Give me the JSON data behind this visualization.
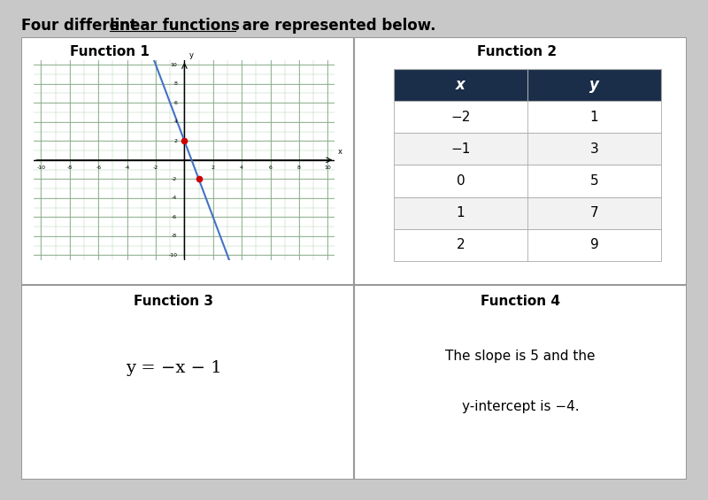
{
  "title_text_part1": "Four different ",
  "title_text_underline": "linear functions",
  "title_text_part2": " are represented below.",
  "outer_bg": "#c8c8c8",
  "panel_bg": "#ffffff",
  "border_color": "#999999",
  "func1_title": "Function 1",
  "func1_line_color": "#4472c4",
  "func1_point1": [
    0,
    2
  ],
  "func1_point2": [
    1,
    -2
  ],
  "func1_slope": -4,
  "func1_intercept": 2,
  "func1_point_color": "#cc0000",
  "func1_grid_bg": "#ddeedd",
  "func1_grid_minor": "#aaccaa",
  "func1_grid_major": "#88aa88",
  "func2_title": "Function 2",
  "func2_header_bg": "#1a2e4a",
  "func2_header_color": "#ffffff",
  "func2_x": [
    -2,
    -1,
    0,
    1,
    2
  ],
  "func2_y": [
    1,
    3,
    5,
    7,
    9
  ],
  "func2_row_bg1": "#ffffff",
  "func2_row_bg2": "#f2f2f2",
  "func2_border": "#aaaaaa",
  "func3_title": "Function 3",
  "func3_equation": "y = −x − 1",
  "func4_title": "Function 4",
  "func4_text_line1": "The slope is 5 and the",
  "func4_text_line2": "y-intercept is −4."
}
